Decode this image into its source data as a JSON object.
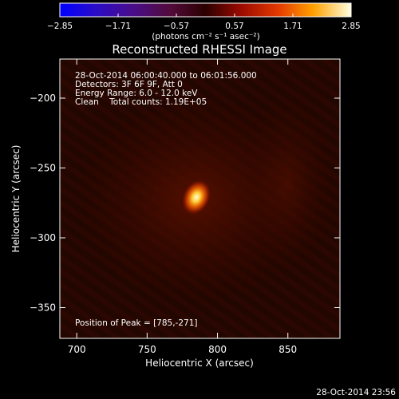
{
  "chart_data": {
    "type": "heatmap",
    "title": "Reconstructed RHESSI Image",
    "xlabel": "Heliocentric X (arcsec)",
    "ylabel": "Heliocentric Y (arcsec)",
    "xlim": [
      688,
      887
    ],
    "ylim": [
      -372,
      -172
    ],
    "x_ticks": [
      700,
      750,
      800,
      850
    ],
    "y_ticks": [
      -200,
      -250,
      -300,
      -350
    ],
    "x_tick_labels": [
      "700",
      "750",
      "800",
      "850"
    ],
    "y_tick_labels": [
      "−200",
      "−250",
      "−300",
      "−350"
    ],
    "colorbar": {
      "range": [
        -2.85,
        2.85
      ],
      "ticks": [
        -2.85,
        -1.71,
        -0.57,
        0.57,
        1.71,
        2.85
      ],
      "tick_labels": [
        "−2.85",
        "−1.71",
        "−0.57",
        "0.57",
        "1.71",
        "2.85"
      ],
      "label": "(photons cm⁻² s⁻¹ asec⁻²)"
    },
    "annotations": [
      "28-Oct-2014 06:00:40.000 to 06:01:56.000",
      "Detectors: 3F 6F 9F, Att 0",
      "Energy Range: 6.0 - 12.0 keV",
      "Clean    Total counts: 1.19E+05"
    ],
    "peak_label": "Position of Peak = [785,-271]",
    "peak": {
      "x": 785,
      "y": -271,
      "value": 2.85
    },
    "background_level": 0.25
  },
  "timestamp": "28-Oct-2014 23:56"
}
